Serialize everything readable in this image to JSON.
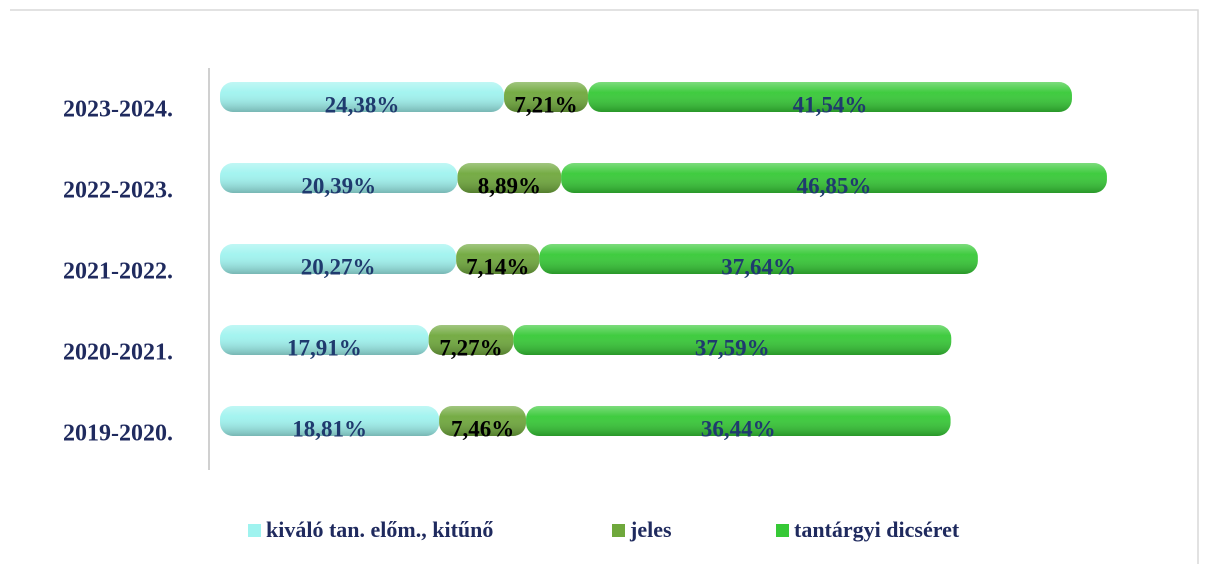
{
  "chart_data": {
    "type": "stacked-bar-horizontal",
    "categories": [
      "2023-2024.",
      "2022-2023.",
      "2021-2022.",
      "2020-2021.",
      "2019-2020."
    ],
    "series": [
      {
        "name": "kiváló tan. előm., kitűnő",
        "color": "#9ff3ef",
        "label_color": "#1f3a6e",
        "values": [
          24.38,
          20.39,
          20.27,
          17.91,
          18.81
        ],
        "value_labels": [
          "24,38%",
          "20,39%",
          "20,27%",
          "17,91%",
          "18,81%"
        ]
      },
      {
        "name": "jeles",
        "color": "#6fa83c",
        "label_color": "#000000",
        "values": [
          7.21,
          8.89,
          7.14,
          7.27,
          7.46
        ],
        "value_labels": [
          "7,21%",
          "8,89%",
          "7,14%",
          "7,27%",
          "7,46%"
        ]
      },
      {
        "name": "tantárgyi dicséret",
        "color": "#36c936",
        "label_color": "#1f3a6e",
        "values": [
          41.54,
          46.85,
          37.64,
          37.59,
          36.44
        ],
        "value_labels": [
          "41,54%",
          "46,85%",
          "37,64%",
          "37,59%",
          "36,44%"
        ]
      }
    ],
    "legend": "bottom"
  }
}
